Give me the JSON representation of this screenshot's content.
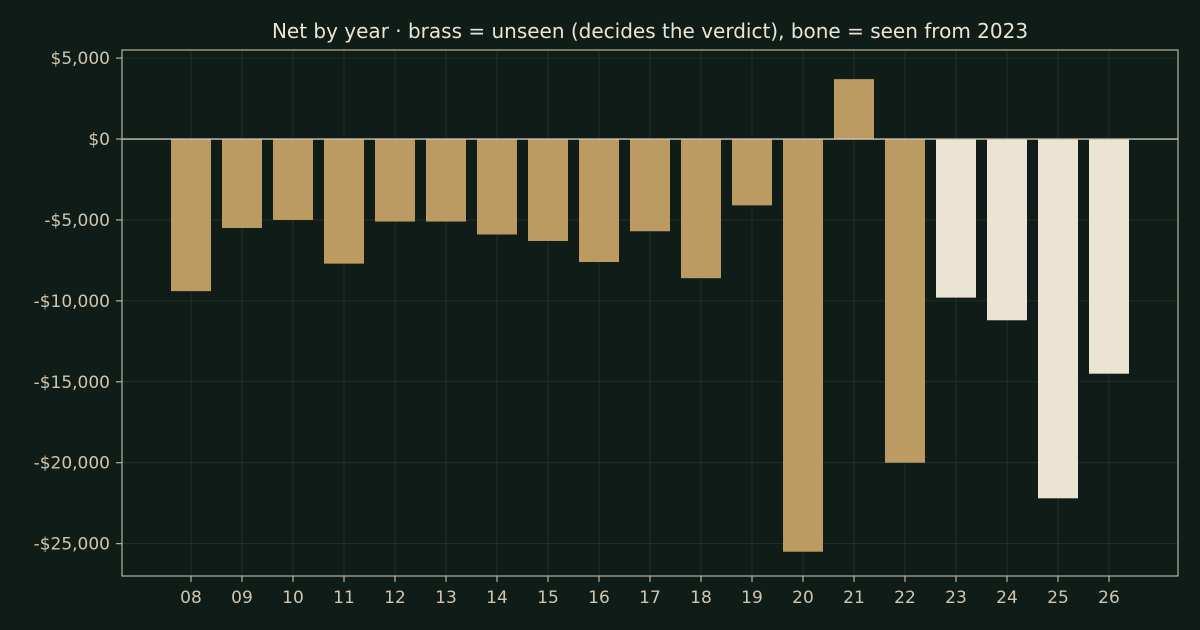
{
  "chart_data": {
    "type": "bar",
    "title": "Net by year  ·  brass = unseen (decides the verdict), bone = seen from 2023",
    "xlabel": "",
    "ylabel": "",
    "categories": [
      "08",
      "09",
      "10",
      "11",
      "12",
      "13",
      "14",
      "15",
      "16",
      "17",
      "18",
      "19",
      "20",
      "21",
      "22",
      "23",
      "24",
      "25",
      "26"
    ],
    "values": [
      -9400,
      -5500,
      -5000,
      -7700,
      -5100,
      -5100,
      -5900,
      -6300,
      -7600,
      -5700,
      -8600,
      -4100,
      -25500,
      3700,
      -20000,
      -9800,
      -11200,
      -22200,
      -14500
    ],
    "groups": [
      "unseen",
      "unseen",
      "unseen",
      "unseen",
      "unseen",
      "unseen",
      "unseen",
      "unseen",
      "unseen",
      "unseen",
      "unseen",
      "unseen",
      "unseen",
      "unseen",
      "unseen",
      "seen",
      "seen",
      "seen",
      "seen"
    ],
    "colors": {
      "unseen": "#bc9b62",
      "seen": "#ebe3d3"
    },
    "ylim": [
      -27000,
      5500
    ],
    "yticks": [
      5000,
      0,
      -5000,
      -10000,
      -15000,
      -20000,
      -25000
    ],
    "ytick_labels": [
      "$5,000",
      "$0",
      "-$5,000",
      "-$10,000",
      "-$15,000",
      "-$20,000",
      "-$25,000"
    ],
    "grid": true,
    "legend": "none"
  }
}
